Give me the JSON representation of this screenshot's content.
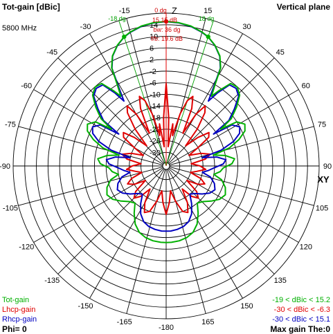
{
  "header": {
    "title": "Tot-gain [dBic]",
    "plane": "Vertical plane",
    "frequency": "5800 MHz"
  },
  "top_annotations": {
    "zero_angle": "0 dg",
    "max_gain": "15.15 dB",
    "beamwidth": "bw: 36 dg",
    "front_back": "f/b: 19.6 dB",
    "left_halfpower": "-18 dg",
    "right_halfpower": "18 dg",
    "z_axis": "Z",
    "xy_axis": "XY"
  },
  "legend": [
    {
      "name": "Tot-gain",
      "color": "#00b000",
      "range": "-19 < dBic < 15.2"
    },
    {
      "name": "Lhcp-gain",
      "color": "#e00000",
      "range": "-30 < dBic < -6.3"
    },
    {
      "name": "Rhcp-gain",
      "color": "#0000c0",
      "range": "-30 < dBic < 15.1"
    }
  ],
  "footer": {
    "phi": "Phi= 0",
    "max_gain": "Max gain The:0"
  },
  "chart_data": {
    "type": "polar",
    "angle_unit": "deg",
    "angle_ticks": [
      0,
      15,
      30,
      45,
      60,
      75,
      90,
      105,
      120,
      135,
      150,
      165,
      -180,
      -165,
      -150,
      -135,
      -120,
      -105,
      -90,
      -75,
      -60,
      -45,
      -30,
      -15
    ],
    "radial_ticks": [
      18,
      14,
      10,
      6,
      2,
      -2,
      -6,
      -10,
      -14,
      -18,
      -22,
      -26,
      -30
    ],
    "radial_labeled": [
      14,
      10,
      6,
      2,
      -2,
      -6,
      -10,
      -14,
      -18,
      -22,
      -26,
      -30
    ],
    "radial_max": 18,
    "radial_min": -33.5,
    "halfpower_angles": [
      -18,
      18
    ],
    "max_marker": {
      "theta": 0,
      "gain": 15.15
    },
    "halfpower_markers": [
      {
        "theta": -18,
        "gain": 12.15
      },
      {
        "theta": 18,
        "gain": 12.15
      }
    ],
    "series": [
      {
        "name": "Tot-gain",
        "color": "#00b000",
        "points": [
          [
            0,
            15.15
          ],
          [
            5,
            14.9
          ],
          [
            10,
            14.3
          ],
          [
            15,
            13.1
          ],
          [
            18,
            12.15
          ],
          [
            22,
            10.2
          ],
          [
            26,
            7.5
          ],
          [
            29,
            4.0
          ],
          [
            31,
            -2
          ],
          [
            33,
            -6
          ],
          [
            35,
            -3
          ],
          [
            38,
            1.4
          ],
          [
            42,
            1.9
          ],
          [
            46,
            0.5
          ],
          [
            50,
            -3
          ],
          [
            54,
            -7
          ],
          [
            56,
            -12
          ],
          [
            58,
            -6
          ],
          [
            62,
            -4
          ],
          [
            66,
            -5
          ],
          [
            70,
            -8
          ],
          [
            74,
            -12
          ],
          [
            77,
            -18
          ],
          [
            80,
            -14
          ],
          [
            84,
            -11
          ],
          [
            88,
            -12
          ],
          [
            92,
            -15
          ],
          [
            96,
            -16
          ],
          [
            100,
            -18
          ],
          [
            104,
            -15
          ],
          [
            110,
            -13
          ],
          [
            116,
            -12
          ],
          [
            122,
            -13
          ],
          [
            128,
            -15
          ],
          [
            134,
            -17
          ],
          [
            140,
            -18
          ],
          [
            146,
            -15
          ],
          [
            152,
            -12
          ],
          [
            158,
            -10
          ],
          [
            164,
            -9
          ],
          [
            170,
            -8.5
          ],
          [
            176,
            -8.3
          ],
          [
            180,
            -8.3
          ],
          [
            -176,
            -8.3
          ],
          [
            -170,
            -8.5
          ],
          [
            -164,
            -9
          ],
          [
            -158,
            -10
          ],
          [
            -152,
            -12
          ],
          [
            -146,
            -15
          ],
          [
            -140,
            -18
          ],
          [
            -134,
            -17
          ],
          [
            -128,
            -15
          ],
          [
            -122,
            -13
          ],
          [
            -116,
            -12
          ],
          [
            -110,
            -13
          ],
          [
            -104,
            -15
          ],
          [
            -100,
            -18
          ],
          [
            -96,
            -16
          ],
          [
            -92,
            -15
          ],
          [
            -88,
            -12
          ],
          [
            -84,
            -11
          ],
          [
            -80,
            -14
          ],
          [
            -77,
            -18
          ],
          [
            -74,
            -12
          ],
          [
            -70,
            -8
          ],
          [
            -66,
            -5
          ],
          [
            -62,
            -4
          ],
          [
            -58,
            -6
          ],
          [
            -56,
            -12
          ],
          [
            -54,
            -7
          ],
          [
            -50,
            -3
          ],
          [
            -46,
            0.5
          ],
          [
            -42,
            1.9
          ],
          [
            -38,
            1.4
          ],
          [
            -35,
            -3
          ],
          [
            -33,
            -6
          ],
          [
            -31,
            -2
          ],
          [
            -29,
            4.0
          ],
          [
            -26,
            7.5
          ],
          [
            -22,
            10.2
          ],
          [
            -18,
            12.15
          ],
          [
            -15,
            13.1
          ],
          [
            -10,
            14.3
          ],
          [
            -5,
            14.9
          ]
        ]
      },
      {
        "name": "Rhcp-gain",
        "color": "#0000c0",
        "points": [
          [
            0,
            15.1
          ],
          [
            5,
            14.85
          ],
          [
            10,
            14.2
          ],
          [
            15,
            13.0
          ],
          [
            18,
            12.1
          ],
          [
            22,
            10.1
          ],
          [
            26,
            7.4
          ],
          [
            29,
            3.8
          ],
          [
            31,
            -3
          ],
          [
            33,
            -8
          ],
          [
            35,
            -4
          ],
          [
            38,
            0.8
          ],
          [
            42,
            1.3
          ],
          [
            46,
            0
          ],
          [
            50,
            -4
          ],
          [
            54,
            -8
          ],
          [
            56,
            -15
          ],
          [
            58,
            -8
          ],
          [
            62,
            -6
          ],
          [
            66,
            -7
          ],
          [
            70,
            -10
          ],
          [
            74,
            -15
          ],
          [
            77,
            -22
          ],
          [
            80,
            -17
          ],
          [
            84,
            -14
          ],
          [
            88,
            -15
          ],
          [
            92,
            -18
          ],
          [
            96,
            -20
          ],
          [
            100,
            -22
          ],
          [
            104,
            -19
          ],
          [
            110,
            -17
          ],
          [
            116,
            -16
          ],
          [
            122,
            -17
          ],
          [
            128,
            -19
          ],
          [
            134,
            -21
          ],
          [
            140,
            -22
          ],
          [
            146,
            -19
          ],
          [
            152,
            -16
          ],
          [
            158,
            -14
          ],
          [
            164,
            -13
          ],
          [
            170,
            -12.5
          ],
          [
            176,
            -12.2
          ],
          [
            180,
            -12.2
          ],
          [
            -176,
            -12.2
          ],
          [
            -170,
            -12.5
          ],
          [
            -164,
            -13
          ],
          [
            -158,
            -14
          ],
          [
            -152,
            -16
          ],
          [
            -146,
            -19
          ],
          [
            -140,
            -22
          ],
          [
            -134,
            -21
          ],
          [
            -128,
            -19
          ],
          [
            -122,
            -17
          ],
          [
            -116,
            -16
          ],
          [
            -110,
            -17
          ],
          [
            -104,
            -19
          ],
          [
            -100,
            -22
          ],
          [
            -96,
            -20
          ],
          [
            -92,
            -18
          ],
          [
            -88,
            -15
          ],
          [
            -84,
            -14
          ],
          [
            -80,
            -17
          ],
          [
            -77,
            -22
          ],
          [
            -74,
            -15
          ],
          [
            -70,
            -10
          ],
          [
            -66,
            -7
          ],
          [
            -62,
            -6
          ],
          [
            -58,
            -8
          ],
          [
            -56,
            -15
          ],
          [
            -54,
            -8
          ],
          [
            -50,
            -4
          ],
          [
            -46,
            0
          ],
          [
            -42,
            1.3
          ],
          [
            -38,
            0.8
          ],
          [
            -35,
            -4
          ],
          [
            -33,
            -8
          ],
          [
            -31,
            -3
          ],
          [
            -29,
            3.8
          ],
          [
            -26,
            7.4
          ],
          [
            -22,
            10.1
          ],
          [
            -18,
            12.1
          ],
          [
            -15,
            13.0
          ],
          [
            -10,
            14.2
          ],
          [
            -5,
            14.85
          ]
        ]
      },
      {
        "name": "Lhcp-gain",
        "color": "#e00000",
        "points": [
          [
            0,
            -6.3
          ],
          [
            3,
            -18
          ],
          [
            6,
            -28
          ],
          [
            9,
            -20
          ],
          [
            12,
            -24
          ],
          [
            15,
            -16
          ],
          [
            18,
            -11
          ],
          [
            21,
            -9
          ],
          [
            24,
            -13
          ],
          [
            27,
            -22
          ],
          [
            30,
            -14
          ],
          [
            33,
            -10
          ],
          [
            36,
            -12
          ],
          [
            40,
            -18
          ],
          [
            44,
            -25
          ],
          [
            48,
            -20
          ],
          [
            52,
            -16
          ],
          [
            56,
            -17
          ],
          [
            60,
            -22
          ],
          [
            65,
            -26
          ],
          [
            70,
            -22
          ],
          [
            75,
            -19
          ],
          [
            80,
            -21
          ],
          [
            85,
            -26
          ],
          [
            90,
            -23
          ],
          [
            95,
            -21
          ],
          [
            100,
            -24
          ],
          [
            105,
            -26
          ],
          [
            110,
            -22
          ],
          [
            115,
            -20
          ],
          [
            120,
            -22
          ],
          [
            125,
            -26
          ],
          [
            130,
            -21
          ],
          [
            135,
            -19
          ],
          [
            140,
            -21
          ],
          [
            145,
            -25
          ],
          [
            150,
            -20
          ],
          [
            155,
            -17
          ],
          [
            160,
            -18
          ],
          [
            165,
            -22
          ],
          [
            170,
            -26
          ],
          [
            175,
            -22
          ],
          [
            180,
            -18
          ],
          [
            -175,
            -22
          ],
          [
            -170,
            -26
          ],
          [
            -165,
            -22
          ],
          [
            -160,
            -18
          ],
          [
            -155,
            -17
          ],
          [
            -150,
            -20
          ],
          [
            -145,
            -25
          ],
          [
            -140,
            -21
          ],
          [
            -135,
            -19
          ],
          [
            -130,
            -21
          ],
          [
            -125,
            -26
          ],
          [
            -120,
            -22
          ],
          [
            -115,
            -20
          ],
          [
            -110,
            -22
          ],
          [
            -105,
            -26
          ],
          [
            -100,
            -24
          ],
          [
            -95,
            -21
          ],
          [
            -90,
            -23
          ],
          [
            -85,
            -26
          ],
          [
            -80,
            -21
          ],
          [
            -75,
            -19
          ],
          [
            -70,
            -22
          ],
          [
            -65,
            -26
          ],
          [
            -60,
            -22
          ],
          [
            -56,
            -17
          ],
          [
            -52,
            -16
          ],
          [
            -48,
            -20
          ],
          [
            -44,
            -25
          ],
          [
            -40,
            -18
          ],
          [
            -36,
            -12
          ],
          [
            -33,
            -10
          ],
          [
            -30,
            -14
          ],
          [
            -27,
            -22
          ],
          [
            -24,
            -13
          ],
          [
            -21,
            -9
          ],
          [
            -18,
            -11
          ],
          [
            -15,
            -16
          ],
          [
            -12,
            -24
          ],
          [
            -9,
            -20
          ],
          [
            -6,
            -28
          ],
          [
            -3,
            -18
          ]
        ]
      }
    ]
  }
}
